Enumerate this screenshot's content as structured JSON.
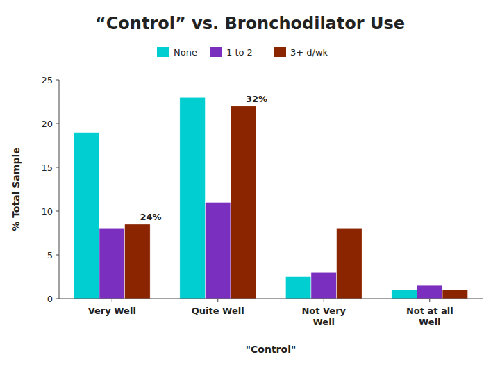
{
  "chart_data": {
    "type": "bar",
    "title": "“Control” vs. Bronchodilator Use",
    "x_label": "\"Control\"",
    "y_label": "% Total Sample",
    "categories": [
      "Very Well",
      "Quite Well",
      "Not Very\nWell",
      "Not at all\nWell"
    ],
    "series": [
      {
        "name": "None",
        "color": "#00CED1",
        "values": [
          19,
          23,
          2.5,
          1
        ]
      },
      {
        "name": "1 to 2",
        "color": "#7B2FBE",
        "values": [
          8,
          11,
          3,
          1.5
        ]
      },
      {
        "name": "3+ d/wk",
        "color": "#8B2500",
        "values": [
          8.5,
          22,
          8,
          1
        ]
      }
    ],
    "annotations": [
      {
        "text": "24%",
        "category": 0,
        "series": 2
      },
      {
        "text": "32%",
        "category": 1,
        "series": 2
      }
    ],
    "ylim": [
      0,
      25
    ],
    "yticks": [
      0,
      5,
      10,
      15,
      20,
      25
    ],
    "grid": false,
    "legend": "top"
  }
}
